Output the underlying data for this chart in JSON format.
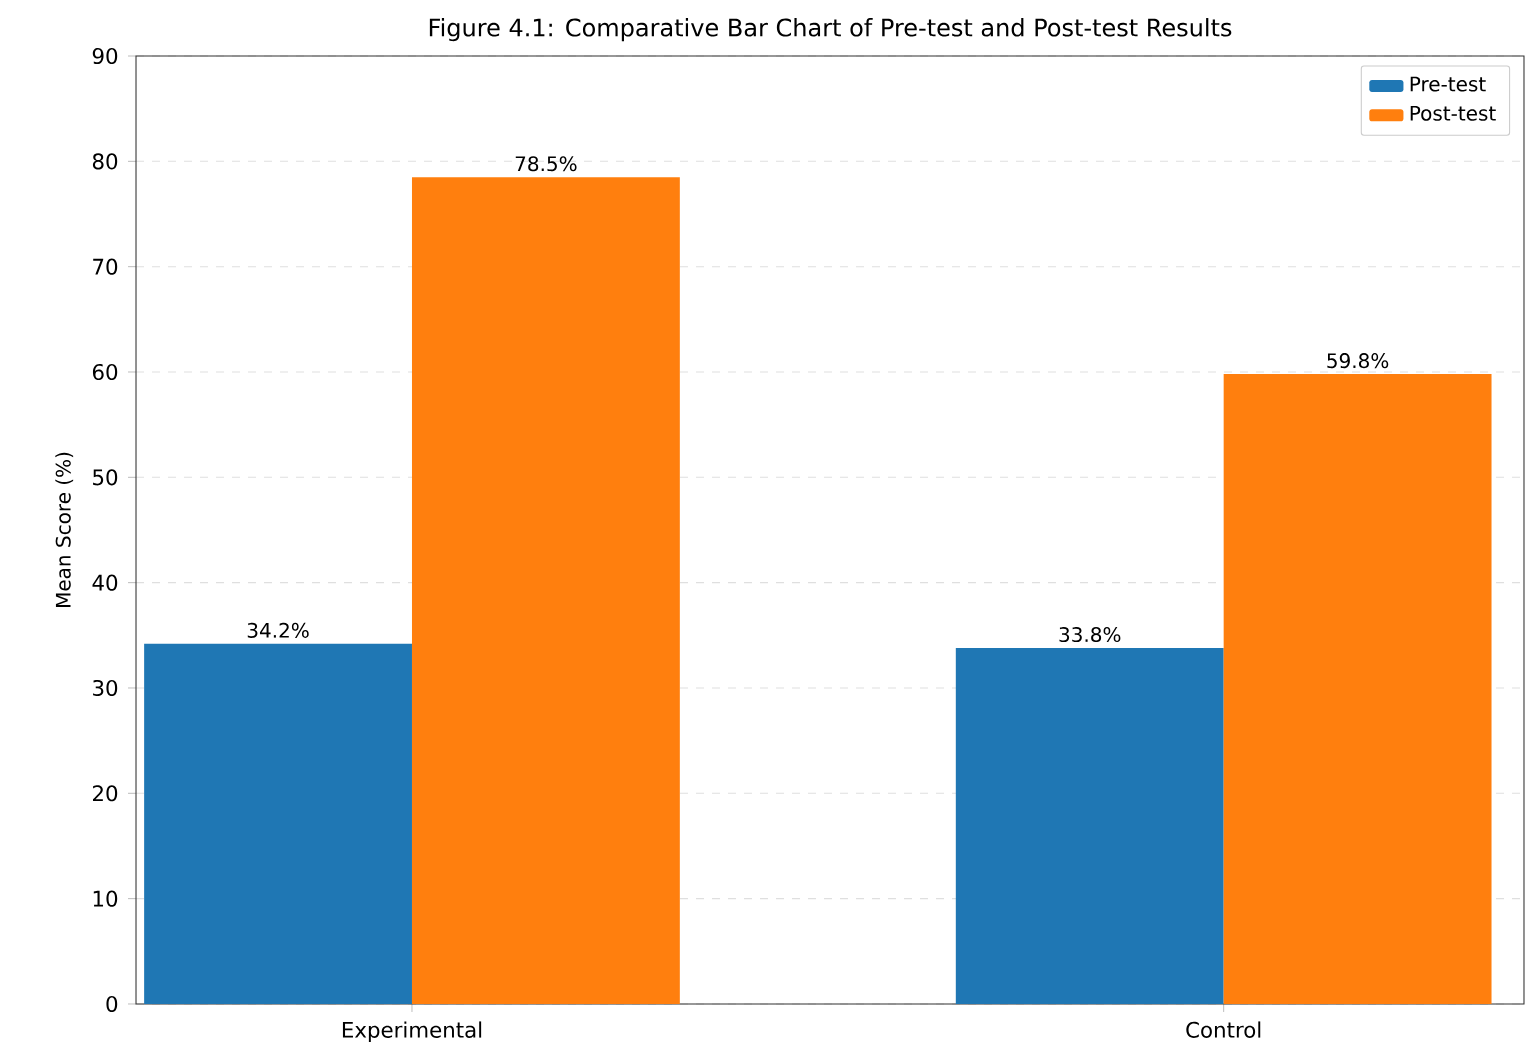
{
  "chart_data": {
    "type": "bar",
    "title": "Figure 4.1: Comparative Bar Chart of Pre-test and Post-test Results",
    "ylabel": "Mean Score (%)",
    "categories": [
      "Experimental",
      "Control"
    ],
    "series": [
      {
        "name": "Pre-test",
        "color": "#1f77b4",
        "values": [
          34.2,
          33.8
        ],
        "value_labels": [
          "34.2%",
          "33.8%"
        ]
      },
      {
        "name": "Post-test",
        "color": "#ff7f0e",
        "values": [
          78.5,
          59.8
        ],
        "value_labels": [
          "78.5%",
          "59.8%"
        ]
      }
    ],
    "ylim": [
      0,
      90
    ],
    "yticks": [
      0,
      10,
      20,
      30,
      40,
      50,
      60,
      70,
      80,
      90
    ],
    "grid": "y",
    "legend": "top right"
  }
}
